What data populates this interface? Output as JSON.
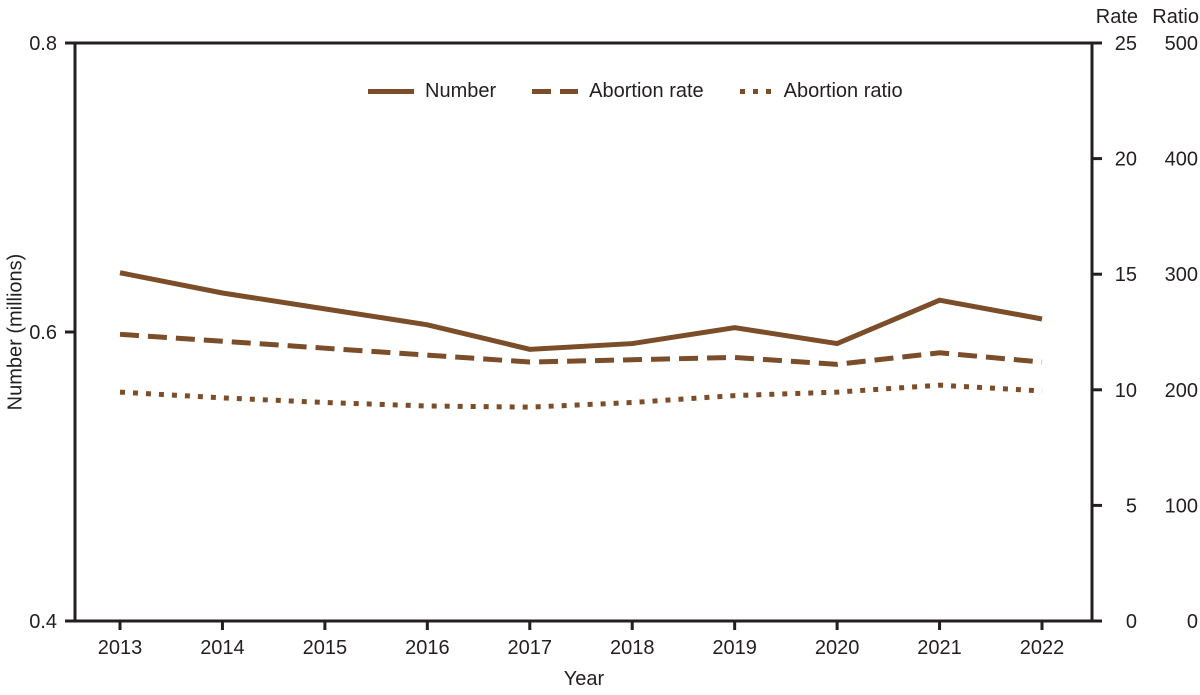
{
  "chart_data": {
    "type": "line",
    "title": "",
    "x": [
      2013,
      2014,
      2015,
      2016,
      2017,
      2018,
      2019,
      2020,
      2021,
      2022
    ],
    "xlabel": "Year",
    "axes": {
      "number": {
        "label": "Number (millions)",
        "side": "left",
        "min": 0.4,
        "max": 0.8,
        "ticks": [
          {
            "label": "0.8",
            "value": 0.8
          },
          {
            "label": "0.6",
            "value": 0.6
          },
          {
            "label": "0.4",
            "value": 0.4
          }
        ]
      },
      "rate": {
        "label": "Rate",
        "side": "right-inner",
        "min": 0,
        "max": 25,
        "ticks": [
          {
            "label": "25",
            "value": 25
          },
          {
            "label": "20",
            "value": 20
          },
          {
            "label": "15",
            "value": 15
          },
          {
            "label": "10",
            "value": 10
          },
          {
            "label": "5",
            "value": 5
          },
          {
            "label": "0",
            "value": 0
          }
        ]
      },
      "ratio": {
        "label": "Ratio",
        "side": "right-outer",
        "min": 0,
        "max": 500,
        "ticks": [
          {
            "label": "500",
            "value": 500
          },
          {
            "label": "400",
            "value": 400
          },
          {
            "label": "300",
            "value": 300
          },
          {
            "label": "200",
            "value": 200
          },
          {
            "label": "100",
            "value": 100
          },
          {
            "label": "0",
            "value": 0
          }
        ]
      }
    },
    "series": [
      {
        "name": "Number",
        "axis": "number",
        "line_style": "solid",
        "values": [
          0.641,
          0.627,
          0.616,
          0.605,
          0.588,
          0.592,
          0.603,
          0.592,
          0.622,
          0.609
        ]
      },
      {
        "name": "Abortion rate",
        "axis": "rate",
        "line_style": "dashed",
        "values": [
          12.4,
          12.1,
          11.8,
          11.5,
          11.2,
          11.3,
          11.4,
          11.1,
          11.6,
          11.2
        ]
      },
      {
        "name": "Abortion ratio",
        "axis": "ratio",
        "line_style": "dotted",
        "values": [
          198,
          193,
          189,
          186,
          185,
          189,
          195,
          198,
          204,
          199
        ]
      }
    ],
    "colors": {
      "series": "#7B4D29",
      "axis": "#231F20",
      "text": "#231F20",
      "background": "#FFFFFF"
    },
    "legend_position": "top-center-inside",
    "grid": false
  }
}
